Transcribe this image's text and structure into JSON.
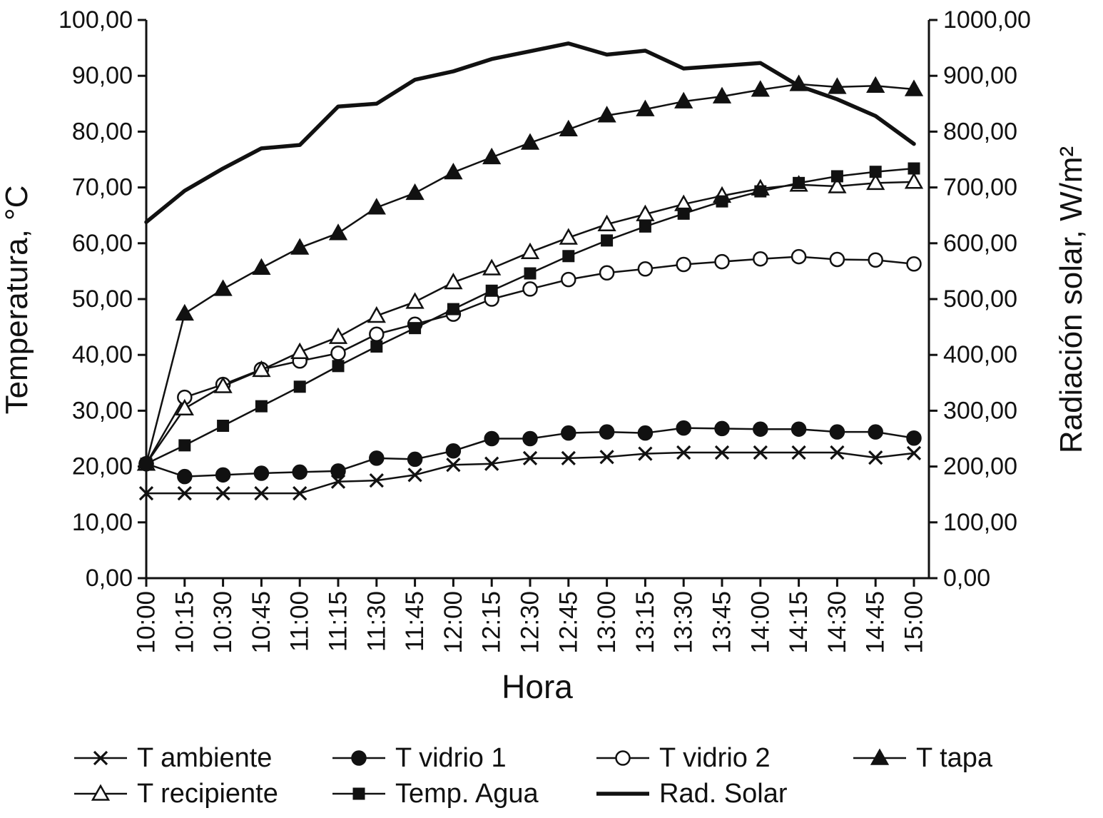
{
  "chart_data": {
    "type": "line",
    "xlabel": "Hora",
    "x_categories": [
      "10:00",
      "10:15",
      "10:30",
      "10:45",
      "11:00",
      "11:15",
      "11:30",
      "11:45",
      "12:00",
      "12:15",
      "12:30",
      "12:45",
      "13:00",
      "13:15",
      "13:30",
      "13:45",
      "14:00",
      "14:15",
      "14:30",
      "14:45",
      "15:00"
    ],
    "left_axis": {
      "label": "Temperatura, °C",
      "min": 0,
      "max": 100,
      "ticks": [
        "0,00",
        "10,00",
        "20,00",
        "30,00",
        "40,00",
        "50,00",
        "60,00",
        "70,00",
        "80,00",
        "90,00",
        "100,00"
      ]
    },
    "right_axis": {
      "label": "Radiación solar, W/m²",
      "min": 0,
      "max": 1000,
      "ticks": [
        "0,00",
        "100,00",
        "200,00",
        "300,00",
        "400,00",
        "500,00",
        "600,00",
        "700,00",
        "800,00",
        "900,00",
        "1000,00"
      ]
    },
    "series": [
      {
        "name": "T ambiente",
        "marker": "x",
        "fill": "filled",
        "axis": "left",
        "values": [
          15.2,
          15.2,
          15.2,
          15.2,
          15.2,
          17.3,
          17.5,
          18.5,
          20.3,
          20.5,
          21.5,
          21.5,
          21.7,
          22.3,
          22.5,
          22.5,
          22.5,
          22.5,
          22.5,
          21.6,
          22.4
        ]
      },
      {
        "name": "T vidrio 1",
        "marker": "circle",
        "fill": "filled",
        "axis": "left",
        "values": [
          20.5,
          18.2,
          18.5,
          18.8,
          19.0,
          19.2,
          21.5,
          21.3,
          22.8,
          25.0,
          25.0,
          26.0,
          26.2,
          26.0,
          26.9,
          26.8,
          26.7,
          26.7,
          26.2,
          26.2,
          25.1
        ]
      },
      {
        "name": "T vidrio 2",
        "marker": "circle",
        "fill": "open",
        "axis": "left",
        "values": [
          20.5,
          32.4,
          34.7,
          37.4,
          38.9,
          40.3,
          43.7,
          45.5,
          47.3,
          50.0,
          51.8,
          53.5,
          54.7,
          55.4,
          56.2,
          56.7,
          57.2,
          57.6,
          57.1,
          57.0,
          56.3
        ]
      },
      {
        "name": "T tapa",
        "marker": "triangle",
        "fill": "filled",
        "axis": "left",
        "values": [
          20.5,
          47.4,
          51.8,
          55.6,
          59.2,
          61.8,
          66.4,
          69.0,
          72.7,
          75.4,
          78.0,
          80.4,
          82.9,
          84.0,
          85.4,
          86.3,
          87.5,
          88.5,
          88.0,
          88.2,
          87.6
        ]
      },
      {
        "name": "T recipiente",
        "marker": "triangle",
        "fill": "open",
        "axis": "left",
        "values": [
          20.5,
          30.4,
          34.4,
          37.3,
          40.5,
          43.2,
          47.0,
          49.5,
          53.0,
          55.5,
          58.4,
          61.0,
          63.4,
          65.2,
          67.0,
          68.5,
          69.8,
          70.5,
          70.2,
          70.8,
          71.0
        ]
      },
      {
        "name": "Temp. Agua",
        "marker": "square",
        "fill": "filled",
        "axis": "left",
        "values": [
          20.5,
          23.8,
          27.3,
          30.8,
          34.3,
          38.0,
          41.5,
          44.8,
          48.2,
          51.5,
          54.6,
          57.7,
          60.5,
          63.0,
          65.3,
          67.5,
          69.3,
          70.8,
          72.0,
          72.8,
          73.4
        ]
      },
      {
        "name": "Rad. Solar",
        "marker": "none",
        "fill": "none",
        "axis": "right",
        "values": [
          638,
          694,
          734,
          770,
          776,
          845,
          850,
          893,
          908,
          930,
          944,
          958,
          938,
          945,
          913,
          918,
          923,
          882,
          858,
          828,
          778
        ]
      }
    ],
    "legend": {
      "rows": [
        [
          "T ambiente",
          "T vidrio 1",
          "T vidrio 2",
          "T tapa"
        ],
        [
          "T recipiente",
          "Temp. Agua",
          "Rad. Solar"
        ]
      ]
    },
    "colors": {
      "line": "#111111",
      "background": "#ffffff"
    }
  }
}
